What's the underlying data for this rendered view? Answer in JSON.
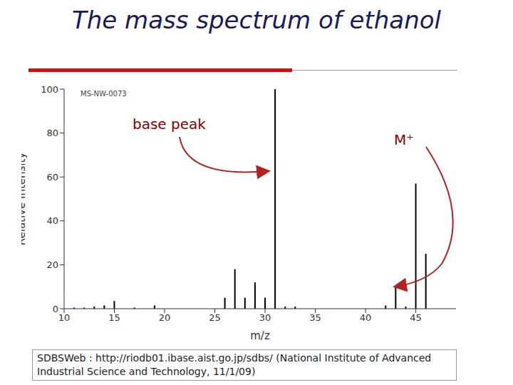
{
  "chart_data": {
    "type": "bar",
    "title": "The mass spectrum of ethanol",
    "code": "MS-NW-0073",
    "annotations": [
      "base peak",
      "M⁺"
    ],
    "x_label": "m/z",
    "y_label": "Relative Intensity",
    "source": "SDBSWeb : http://riodb01.ibase.aist.go.jp/sdbs/ (National Institute of Advanced Industrial Science and Technology, 11/1/09)",
    "x": [
      11,
      12,
      13,
      14,
      15,
      17,
      19,
      26,
      27,
      28,
      29,
      30,
      31,
      32,
      33,
      42,
      43,
      44,
      45,
      46
    ],
    "values": [
      0.5,
      0.5,
      1,
      1.5,
      3.5,
      0.5,
      1.5,
      5,
      18,
      5,
      12,
      5,
      100,
      1,
      1,
      1.5,
      10,
      1,
      57,
      25
    ],
    "color": "#000000",
    "xlim": [
      10,
      49
    ],
    "xticks": [
      10,
      15,
      20,
      25,
      30,
      35,
      40,
      45
    ],
    "ylim": [
      0,
      100
    ],
    "yticks": [
      0,
      20,
      40,
      60,
      80,
      100
    ],
    "grid": false
  }
}
